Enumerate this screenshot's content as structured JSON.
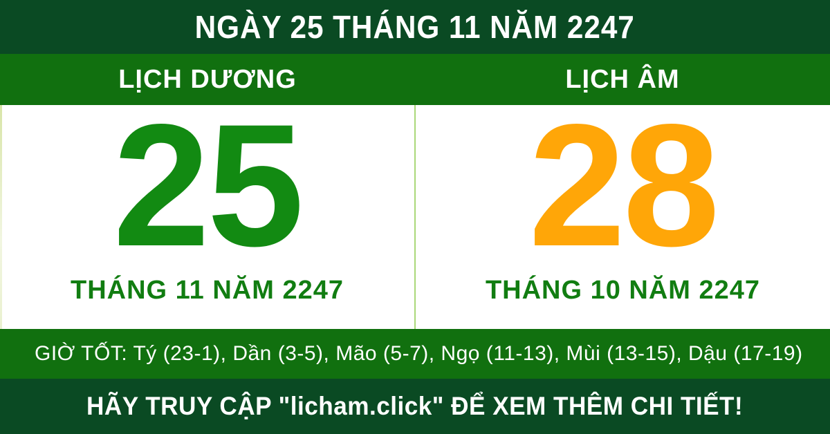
{
  "theme": {
    "dark_green": "#0a4a23",
    "green": "#11700f",
    "number_green": "#128a12",
    "text_green": "#117d11",
    "orange": "#ffa608",
    "white": "#ffffff",
    "divider_green": "#a9d878",
    "edge_strip": "#d8e5a8"
  },
  "header": {
    "title": "NGÀY 25 THÁNG 11 NĂM 2247"
  },
  "calendar": {
    "solar": {
      "label": "LỊCH DƯƠNG",
      "day": "25",
      "month_year": "THÁNG 11 NĂM 2247"
    },
    "lunar": {
      "label": "LỊCH ÂM",
      "day": "28",
      "month_year": "THÁNG 10 NĂM 2247"
    }
  },
  "good_hours": {
    "text": "GIỜ TỐT: Tý (23-1), Dần (3-5), Mão (5-7), Ngọ (11-13), Mùi (13-15), Dậu (17-19)"
  },
  "footer": {
    "text": "HÃY TRUY CẬP \"licham.click\" ĐỂ XEM THÊM CHI TIẾT!"
  }
}
